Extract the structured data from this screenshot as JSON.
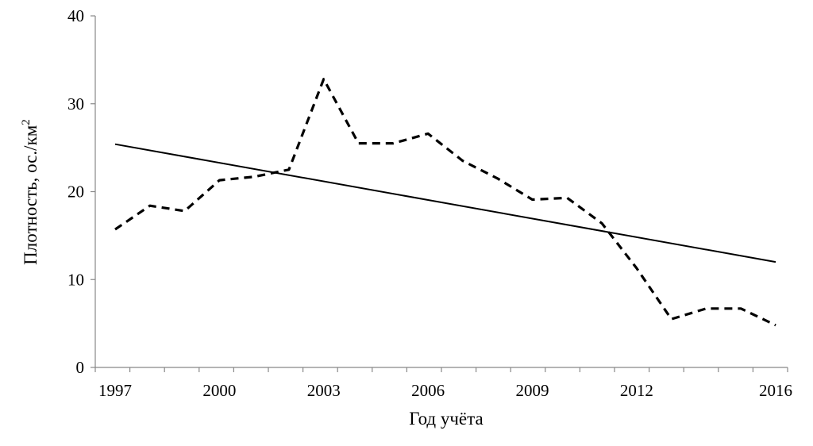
{
  "chart_data": {
    "type": "line",
    "xlabel": "Год учёта",
    "ylabel": "Плотность, ос./км",
    "ylabel_superscript": "2",
    "xlim": [
      1997,
      2016
    ],
    "ylim": [
      0,
      40
    ],
    "x_ticks": [
      1997,
      2000,
      2003,
      2006,
      2009,
      2012,
      2016
    ],
    "y_ticks": [
      0,
      10,
      20,
      30,
      40
    ],
    "grid": false,
    "legend": "none",
    "series": [
      {
        "style": "dashed",
        "color": "#000000",
        "x": [
          1997,
          1998,
          1999,
          2000,
          2001,
          2002,
          2003,
          2004,
          2005,
          2006,
          2007,
          2008,
          2009,
          2010,
          2011,
          2012,
          2013,
          2014,
          2015,
          2016
        ],
        "y": [
          15.7,
          18.4,
          17.8,
          21.3,
          21.7,
          22.5,
          32.8,
          25.5,
          25.5,
          26.6,
          23.5,
          21.5,
          19.1,
          19.3,
          16.4,
          11.3,
          5.5,
          6.7,
          6.7,
          4.8
        ]
      },
      {
        "style": "solid",
        "color": "#000000",
        "x": [
          1997,
          2016
        ],
        "y": [
          25.4,
          12.0
        ]
      }
    ]
  }
}
